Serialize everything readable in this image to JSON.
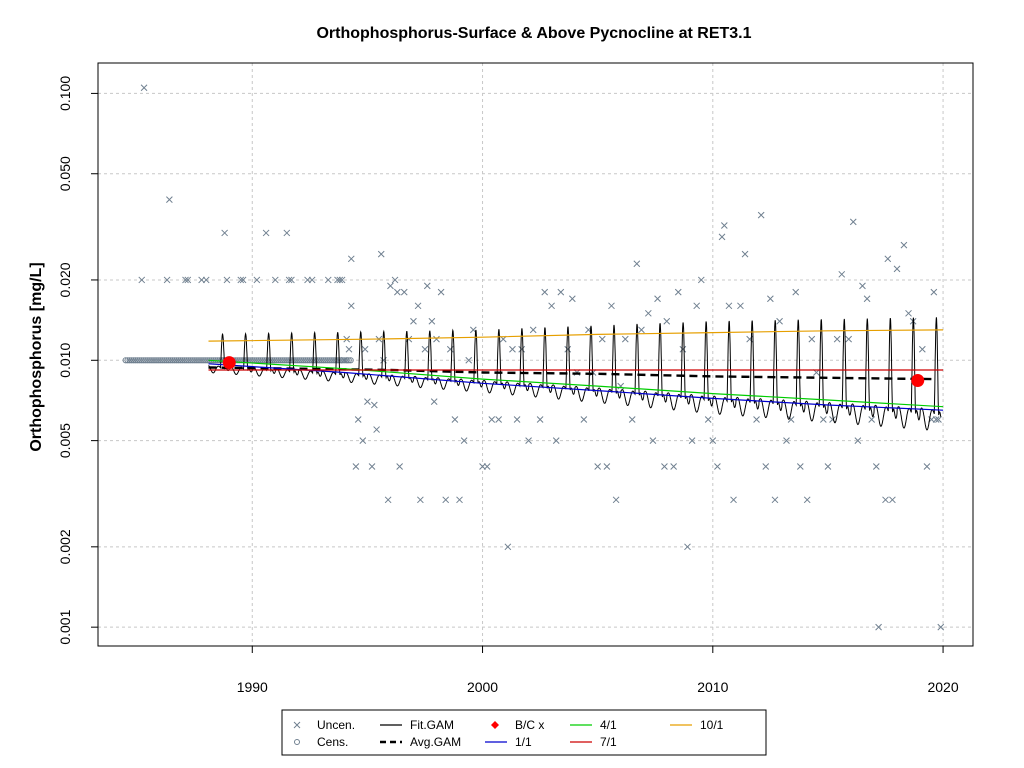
{
  "chart_data": {
    "type": "scatter",
    "title": "Orthophosphorus-Surface & Above Pycnocline at RET3.1",
    "xlabel": "",
    "ylabel": "Orthophosphorus [mg/L]",
    "log_y": true,
    "xlim": [
      1983.3,
      2021.3
    ],
    "ylim": [
      0.00085,
      0.13
    ],
    "x_ticks": [
      1990,
      2000,
      2010,
      2020
    ],
    "y_ticks": [
      0.001,
      0.002,
      0.005,
      0.01,
      0.02,
      0.05,
      0.1
    ],
    "y_tick_labels": [
      "0.001",
      "0.002",
      "0.005",
      "0.010",
      "0.020",
      "0.050",
      "0.100"
    ],
    "grid": true,
    "legend_position": "bottom",
    "legend": [
      {
        "label": "Uncen.",
        "symbol": "x",
        "color": "#708090"
      },
      {
        "label": "Cens.",
        "symbol": "circle",
        "color": "#708090"
      },
      {
        "label": "Fit.GAM",
        "symbol": "line",
        "color": "#000000"
      },
      {
        "label": "Avg.GAM",
        "symbol": "dashed",
        "color": "#000000"
      },
      {
        "label": "B/C x",
        "symbol": "diamond",
        "color": "#ff0000"
      },
      {
        "label": "1/1",
        "symbol": "line",
        "color": "#0000cd"
      },
      {
        "label": "4/1",
        "symbol": "line",
        "color": "#00cd00"
      },
      {
        "label": "7/1",
        "symbol": "line",
        "color": "#cd0000"
      },
      {
        "label": "10/1",
        "symbol": "line",
        "color": "#e69f00"
      }
    ],
    "series": [
      {
        "name": "Fit.GAM",
        "color": "#000000",
        "type": "seasonal-line",
        "x_start": 1988.1,
        "x_end": 2019.9,
        "baseline": [
          [
            1988.1,
            0.0095
          ],
          [
            2000,
            0.0083
          ],
          [
            2010,
            0.0072
          ],
          [
            2019.9,
            0.0064
          ]
        ],
        "peaks": [
          [
            1988.1,
            0.0125
          ],
          [
            2000,
            0.013
          ],
          [
            2010,
            0.014
          ],
          [
            2019.9,
            0.0145
          ]
        ]
      },
      {
        "name": "Avg.GAM",
        "color": "#000000",
        "type": "dashed",
        "points": [
          [
            1988.1,
            0.0094
          ],
          [
            1992,
            0.0093
          ],
          [
            1996,
            0.0092
          ],
          [
            2000,
            0.009
          ],
          [
            2005,
            0.0089
          ],
          [
            2010,
            0.0087
          ],
          [
            2015,
            0.0086
          ],
          [
            2019.6,
            0.0085
          ]
        ]
      },
      {
        "name": "1/1",
        "color": "#0000cd",
        "points": [
          [
            1988.1,
            0.0097
          ],
          [
            1994,
            0.009
          ],
          [
            2000,
            0.0082
          ],
          [
            2005,
            0.0077
          ],
          [
            2010,
            0.0072
          ],
          [
            2015,
            0.0068
          ],
          [
            2020,
            0.0065
          ]
        ]
      },
      {
        "name": "4/1",
        "color": "#00cd00",
        "points": [
          [
            1988.1,
            0.01
          ],
          [
            1994,
            0.0093
          ],
          [
            2000,
            0.0085
          ],
          [
            2005,
            0.008
          ],
          [
            2010,
            0.0075
          ],
          [
            2015,
            0.0071
          ],
          [
            2020,
            0.0067
          ]
        ]
      },
      {
        "name": "7/1",
        "color": "#cd0000",
        "points": [
          [
            1988.1,
            0.0092
          ],
          [
            1995,
            0.0092
          ],
          [
            2000,
            0.0092
          ],
          [
            2010,
            0.0092
          ],
          [
            2020,
            0.0092
          ]
        ]
      },
      {
        "name": "10/1",
        "color": "#e69f00",
        "points": [
          [
            1988.1,
            0.0118
          ],
          [
            1995,
            0.012
          ],
          [
            2000,
            0.0122
          ],
          [
            2005,
            0.0125
          ],
          [
            2010,
            0.0127
          ],
          [
            2015,
            0.0129
          ],
          [
            2020,
            0.013
          ]
        ]
      }
    ],
    "bc_points": [
      [
        1989.0,
        0.0098
      ],
      [
        2018.9,
        0.0084
      ]
    ],
    "uncensored_points": [
      [
        1985.3,
        0.105
      ],
      [
        1985.2,
        0.02
      ],
      [
        1986.4,
        0.04
      ],
      [
        1986.3,
        0.02
      ],
      [
        1987.2,
        0.02
      ],
      [
        1987.1,
        0.02
      ],
      [
        1987.8,
        0.02
      ],
      [
        1988.0,
        0.02
      ],
      [
        1988.8,
        0.03
      ],
      [
        1988.9,
        0.02
      ],
      [
        1989.5,
        0.02
      ],
      [
        1989.6,
        0.02
      ],
      [
        1990.2,
        0.02
      ],
      [
        1990.6,
        0.03
      ],
      [
        1991.0,
        0.02
      ],
      [
        1991.5,
        0.03
      ],
      [
        1991.6,
        0.02
      ],
      [
        1991.7,
        0.02
      ],
      [
        1992.4,
        0.02
      ],
      [
        1992.6,
        0.02
      ],
      [
        1993.3,
        0.02
      ],
      [
        1993.7,
        0.02
      ],
      [
        1993.8,
        0.02
      ],
      [
        1993.9,
        0.02
      ],
      [
        1994.0,
        0.01
      ],
      [
        1994.1,
        0.012
      ],
      [
        1994.2,
        0.011
      ],
      [
        1994.3,
        0.024
      ],
      [
        1994.3,
        0.016
      ],
      [
        1994.5,
        0.004
      ],
      [
        1994.6,
        0.006
      ],
      [
        1994.8,
        0.005
      ],
      [
        1994.9,
        0.011
      ],
      [
        1995.0,
        0.007
      ],
      [
        1995.2,
        0.004
      ],
      [
        1995.3,
        0.0068
      ],
      [
        1995.4,
        0.0055
      ],
      [
        1995.5,
        0.012
      ],
      [
        1995.6,
        0.025
      ],
      [
        1995.7,
        0.01
      ],
      [
        1995.9,
        0.003
      ],
      [
        1996.0,
        0.019
      ],
      [
        1996.2,
        0.02
      ],
      [
        1996.3,
        0.018
      ],
      [
        1996.4,
        0.004
      ],
      [
        1996.6,
        0.018
      ],
      [
        1996.8,
        0.012
      ],
      [
        1997.0,
        0.014
      ],
      [
        1997.2,
        0.016
      ],
      [
        1997.3,
        0.003
      ],
      [
        1997.5,
        0.011
      ],
      [
        1997.6,
        0.019
      ],
      [
        1997.8,
        0.014
      ],
      [
        1997.9,
        0.007
      ],
      [
        1998.0,
        0.012
      ],
      [
        1998.2,
        0.018
      ],
      [
        1998.4,
        0.003
      ],
      [
        1998.6,
        0.011
      ],
      [
        1998.8,
        0.006
      ],
      [
        1999.0,
        0.003
      ],
      [
        1999.2,
        0.005
      ],
      [
        1999.4,
        0.01
      ],
      [
        1999.6,
        0.013
      ],
      [
        2000.0,
        0.004
      ],
      [
        2000.2,
        0.004
      ],
      [
        2000.4,
        0.006
      ],
      [
        2000.7,
        0.006
      ],
      [
        2000.9,
        0.012
      ],
      [
        2001.1,
        0.002
      ],
      [
        2001.3,
        0.011
      ],
      [
        2001.5,
        0.006
      ],
      [
        2001.7,
        0.011
      ],
      [
        2002.0,
        0.005
      ],
      [
        2002.2,
        0.013
      ],
      [
        2002.5,
        0.006
      ],
      [
        2002.7,
        0.018
      ],
      [
        2003.0,
        0.016
      ],
      [
        2003.2,
        0.005
      ],
      [
        2003.4,
        0.018
      ],
      [
        2003.7,
        0.011
      ],
      [
        2003.9,
        0.017
      ],
      [
        2004.1,
        0.009
      ],
      [
        2004.4,
        0.006
      ],
      [
        2004.6,
        0.013
      ],
      [
        2004.8,
        0.009
      ],
      [
        2005.0,
        0.004
      ],
      [
        2005.2,
        0.012
      ],
      [
        2005.4,
        0.004
      ],
      [
        2005.6,
        0.016
      ],
      [
        2005.8,
        0.003
      ],
      [
        2006.0,
        0.008
      ],
      [
        2006.2,
        0.012
      ],
      [
        2006.5,
        0.006
      ],
      [
        2006.7,
        0.023
      ],
      [
        2006.9,
        0.013
      ],
      [
        2007.2,
        0.015
      ],
      [
        2007.4,
        0.005
      ],
      [
        2007.6,
        0.017
      ],
      [
        2007.9,
        0.004
      ],
      [
        2008.0,
        0.014
      ],
      [
        2008.3,
        0.004
      ],
      [
        2008.5,
        0.018
      ],
      [
        2008.7,
        0.011
      ],
      [
        2008.9,
        0.002
      ],
      [
        2009.1,
        0.005
      ],
      [
        2009.3,
        0.016
      ],
      [
        2009.5,
        0.02
      ],
      [
        2009.8,
        0.006
      ],
      [
        2010.0,
        0.005
      ],
      [
        2010.2,
        0.004
      ],
      [
        2010.4,
        0.029
      ],
      [
        2010.5,
        0.032
      ],
      [
        2010.7,
        0.016
      ],
      [
        2010.9,
        0.003
      ],
      [
        2011.2,
        0.016
      ],
      [
        2011.4,
        0.025
      ],
      [
        2011.6,
        0.012
      ],
      [
        2011.9,
        0.006
      ],
      [
        2012.1,
        0.035
      ],
      [
        2012.3,
        0.004
      ],
      [
        2012.5,
        0.017
      ],
      [
        2012.7,
        0.003
      ],
      [
        2012.9,
        0.014
      ],
      [
        2013.2,
        0.005
      ],
      [
        2013.4,
        0.006
      ],
      [
        2013.6,
        0.018
      ],
      [
        2013.8,
        0.004
      ],
      [
        2014.1,
        0.003
      ],
      [
        2014.3,
        0.012
      ],
      [
        2014.5,
        0.009
      ],
      [
        2014.8,
        0.006
      ],
      [
        2015.0,
        0.004
      ],
      [
        2015.2,
        0.006
      ],
      [
        2015.4,
        0.012
      ],
      [
        2015.6,
        0.021
      ],
      [
        2015.9,
        0.012
      ],
      [
        2016.1,
        0.033
      ],
      [
        2016.3,
        0.005
      ],
      [
        2016.5,
        0.019
      ],
      [
        2016.7,
        0.017
      ],
      [
        2016.9,
        0.006
      ],
      [
        2017.1,
        0.004
      ],
      [
        2017.2,
        0.001
      ],
      [
        2017.5,
        0.003
      ],
      [
        2017.6,
        0.024
      ],
      [
        2017.8,
        0.003
      ],
      [
        2018.0,
        0.022
      ],
      [
        2018.3,
        0.027
      ],
      [
        2018.5,
        0.015
      ],
      [
        2018.7,
        0.014
      ],
      [
        2019.1,
        0.011
      ],
      [
        2019.3,
        0.004
      ],
      [
        2019.5,
        0.006
      ],
      [
        2019.6,
        0.018
      ],
      [
        2019.7,
        0.006
      ],
      [
        2019.8,
        0.006
      ],
      [
        2019.9,
        0.001
      ]
    ],
    "censored_points_x_start": 1984.5,
    "censored_points_x_end": 1994.3,
    "censored_points_y": 0.01
  }
}
